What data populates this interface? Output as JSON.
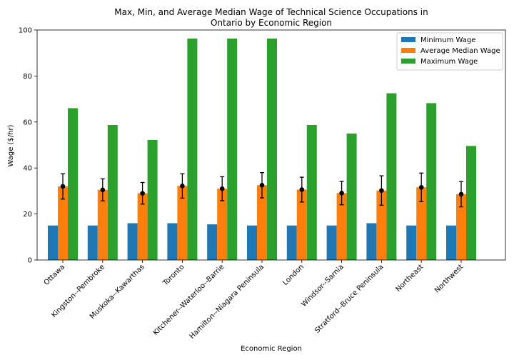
{
  "chart_data": {
    "type": "bar",
    "title_lines": [
      "Max, Min, and Average Median Wage of Technical Science Occupations in",
      "Ontario by Economic Region"
    ],
    "xlabel": "Economic Region",
    "ylabel": "Wage ($/hr)",
    "ylim": [
      0,
      100
    ],
    "yticks": [
      0,
      20,
      40,
      60,
      80,
      100
    ],
    "categories": [
      "Ottawa",
      "Kingston--Pembroke",
      "Muskoka--Kawarthas",
      "Toronto",
      "Kitchener--Waterloo--Barrie",
      "Hamilton--Niagara Peninsula",
      "London",
      "Windsor--Sarnia",
      "Stratford--Bruce Peninsula",
      "Northeast",
      "Northwest"
    ],
    "series": [
      {
        "name": "Minimum Wage",
        "color": "#1f77b4",
        "values": [
          15.0,
          15.0,
          16.0,
          16.0,
          15.5,
          15.0,
          15.0,
          15.0,
          16.0,
          15.0,
          15.0
        ]
      },
      {
        "name": "Average Median Wage",
        "color": "#ff7f0e",
        "values": [
          32.0,
          30.5,
          29.0,
          32.2,
          31.0,
          32.5,
          30.6,
          29.1,
          30.2,
          31.6,
          28.6
        ],
        "error": [
          5.5,
          4.8,
          4.7,
          5.3,
          5.2,
          5.5,
          5.4,
          5.1,
          6.4,
          6.2,
          5.5
        ],
        "marker_color": "#000000"
      },
      {
        "name": "Maximum Wage",
        "color": "#2ca02c",
        "values": [
          66.0,
          58.7,
          52.2,
          96.3,
          96.3,
          96.3,
          58.7,
          55.0,
          72.5,
          68.2,
          49.6
        ]
      }
    ],
    "legend": "top-right",
    "grid": false
  }
}
